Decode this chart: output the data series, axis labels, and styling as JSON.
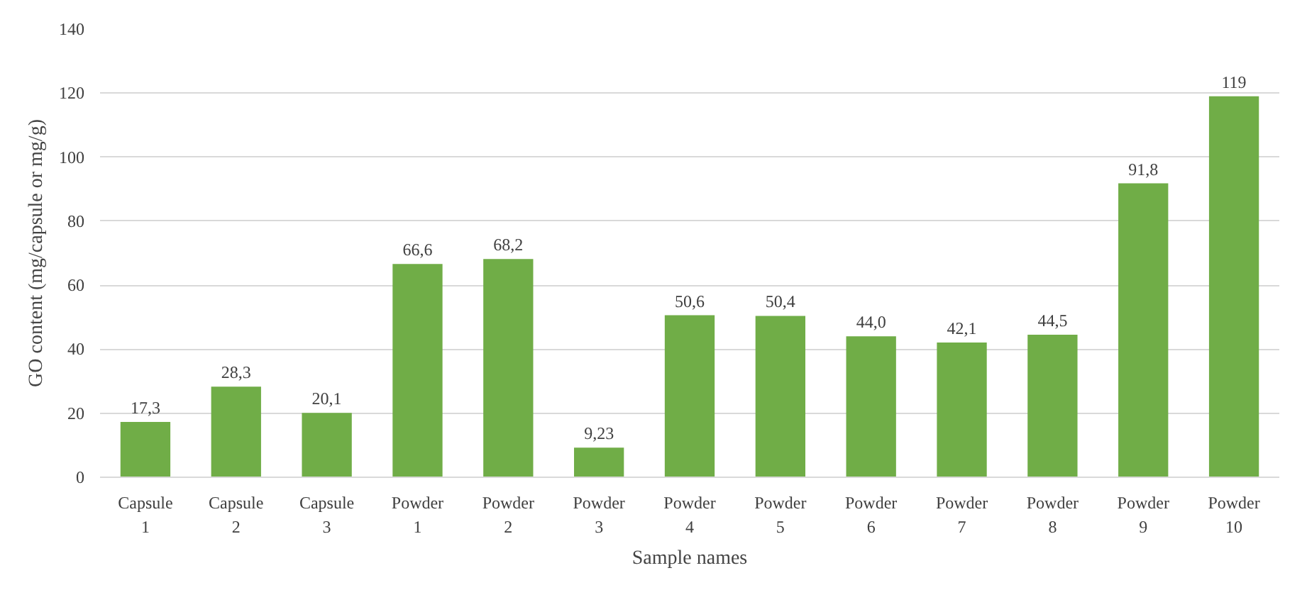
{
  "chart_data": {
    "type": "bar",
    "xlabel": "Sample names",
    "ylabel": "GO content (mg/capsule or mg/g)",
    "categories": [
      "Capsule 1",
      "Capsule 2",
      "Capsule 3",
      "Powder 1",
      "Powder 2",
      "Powder 3",
      "Powder 4",
      "Powder 5",
      "Powder 6",
      "Powder 7",
      "Powder 8",
      "Powder 9",
      "Powder 10"
    ],
    "values": [
      17.3,
      28.3,
      20.1,
      66.6,
      68.2,
      9.23,
      50.6,
      50.4,
      44.0,
      42.1,
      44.5,
      91.8,
      119
    ],
    "value_labels": [
      "17,3",
      "28,3",
      "20,1",
      "66,6",
      "68,2",
      "9,23",
      "50,6",
      "50,4",
      "44,0",
      "42,1",
      "44,5",
      "91,8",
      "119"
    ],
    "color": "#70ad47",
    "ylim": [
      0,
      140
    ],
    "yticks": [
      0,
      20,
      40,
      60,
      80,
      100,
      120,
      140
    ],
    "grid": "y"
  }
}
